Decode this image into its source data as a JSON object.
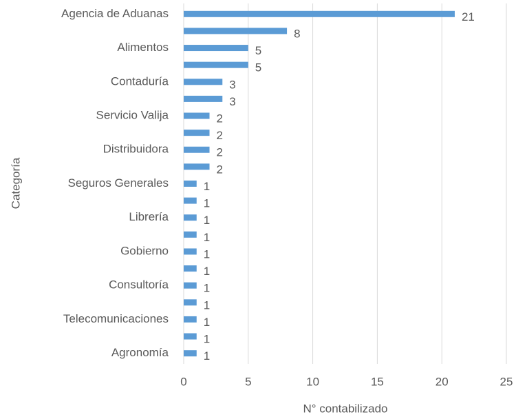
{
  "chart_data": {
    "type": "barh",
    "categories": [
      "Agencia de Aduanas",
      null,
      "Alimentos",
      null,
      "Contaduría",
      null,
      "Servicio Valija",
      null,
      "Distribuidora",
      null,
      "Seguros Generales",
      null,
      "Librería",
      null,
      "Gobierno",
      null,
      "Consultoría",
      null,
      "Telecomunicaciones",
      null,
      "Agronomía"
    ],
    "values": [
      21,
      8,
      5,
      5,
      3,
      3,
      2,
      2,
      2,
      2,
      1,
      1,
      1,
      1,
      1,
      1,
      1,
      1,
      1,
      1,
      1
    ],
    "color": "#5b9bd5",
    "xlabel": "N° contabilizado",
    "ylabel": "Categoría",
    "xlim": [
      0,
      25
    ],
    "xticks": [
      0,
      5,
      10,
      15,
      20,
      25
    ],
    "grid": true
  }
}
